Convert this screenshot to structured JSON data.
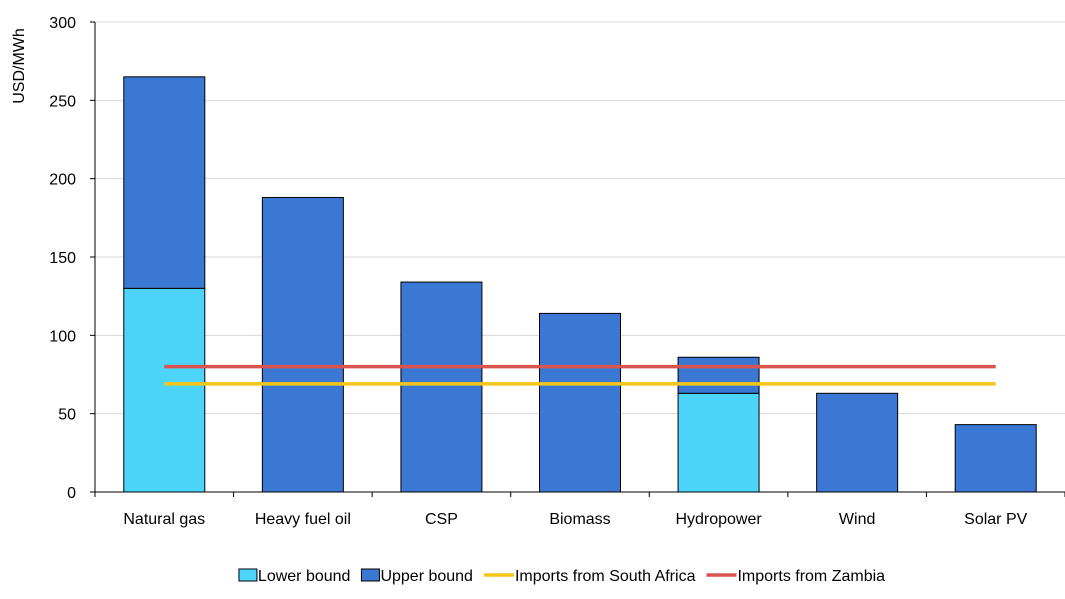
{
  "chart_data": {
    "type": "bar",
    "stacked": true,
    "ylabel": "USD/MWh",
    "xlabel": "",
    "ylim": [
      0,
      300
    ],
    "yticks": [
      0,
      50,
      100,
      150,
      200,
      250,
      300
    ],
    "grid": true,
    "legend_position": "bottom",
    "categories": [
      "Natural gas",
      "Heavy fuel oil",
      "CSP",
      "Biomass",
      "Hydropower",
      "Wind",
      "Solar PV"
    ],
    "series": [
      {
        "name": "Lower bound",
        "kind": "bar",
        "color": "#4DD4FA",
        "values": [
          130,
          0,
          0,
          0,
          63,
          0,
          0
        ]
      },
      {
        "name": "Upper bound",
        "kind": "bar",
        "color": "#3A78D4",
        "values": [
          135,
          188,
          134,
          114,
          23,
          63,
          43
        ]
      },
      {
        "name": "Imports from South Africa",
        "kind": "line",
        "color": "#F5C518",
        "value": 69
      },
      {
        "name": "Imports from Zambia",
        "kind": "line",
        "color": "#D9534F",
        "value": 80
      }
    ]
  }
}
